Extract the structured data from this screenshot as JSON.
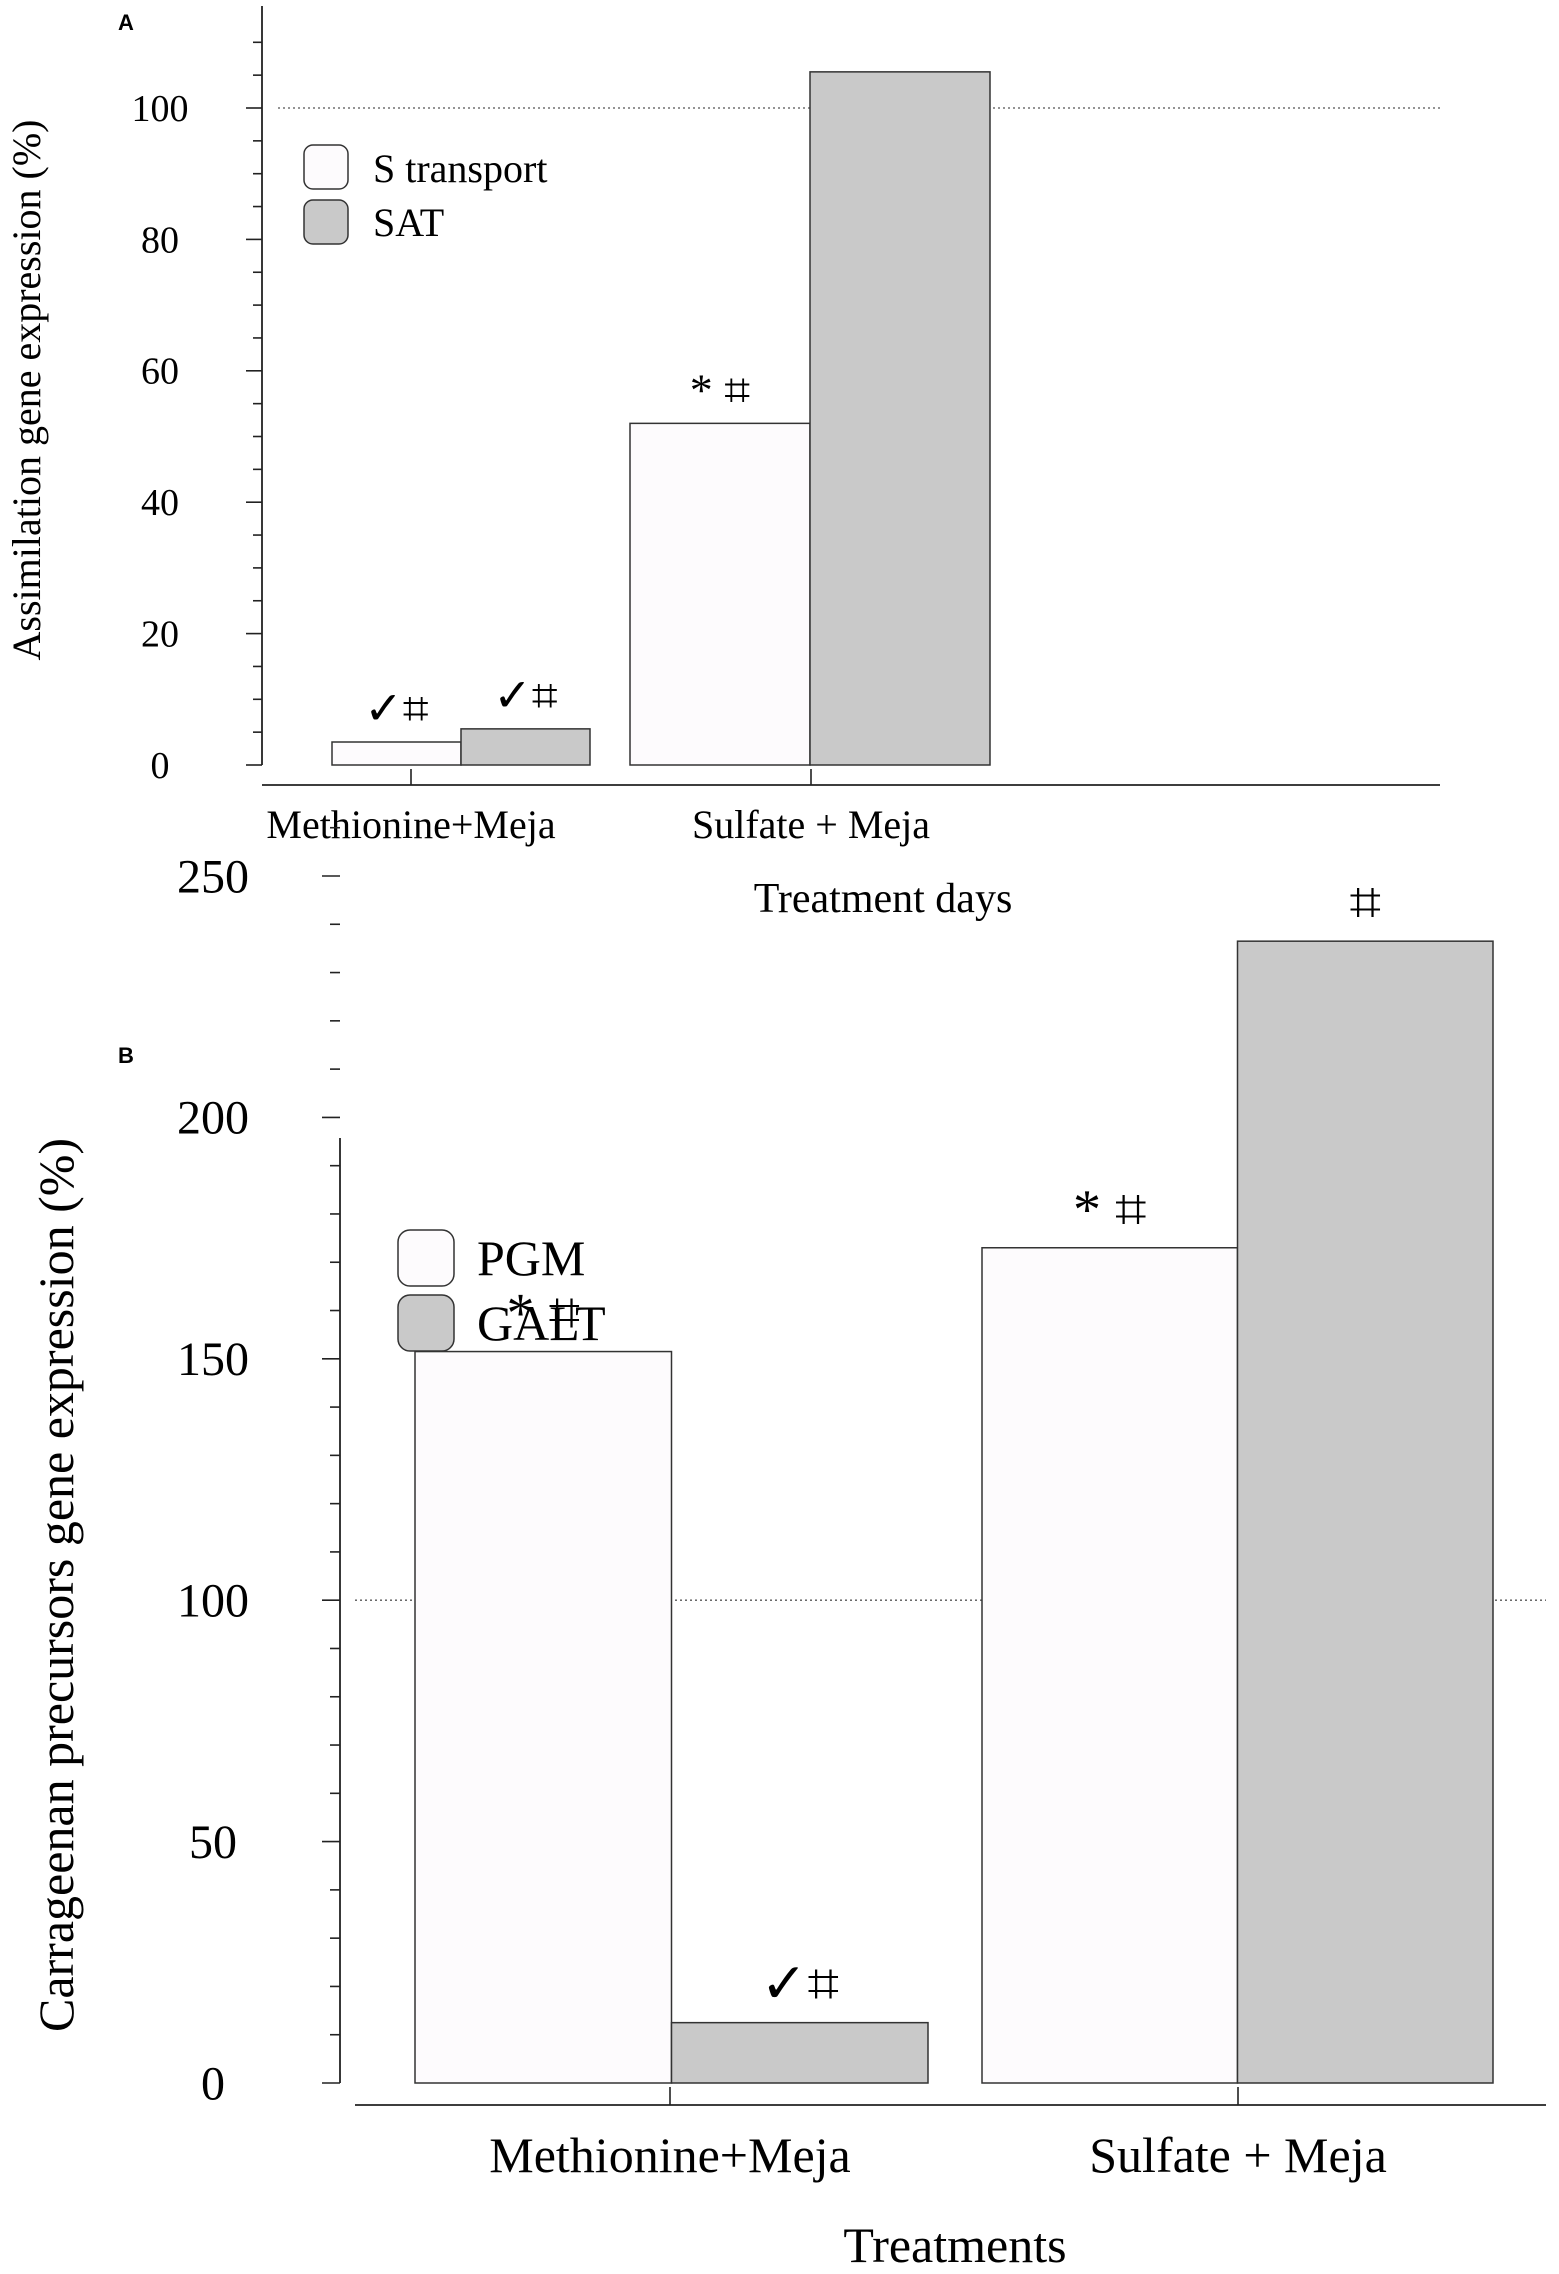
{
  "colors": {
    "series_light": "#fdfbfd",
    "series_gray": "#c9c9c9",
    "axis": "#222222",
    "reference_line": "#555555"
  },
  "chart_data": [
    {
      "panel_label": "A",
      "type": "bar",
      "title": "",
      "xlabel": "Treatment days",
      "ylabel": "Assimilation  gene expression (%)",
      "categories": [
        "Methionine+Meja",
        "Sulfate + Meja"
      ],
      "series": [
        {
          "name": "S transport",
          "values": [
            3.5,
            52
          ],
          "annotations": [
            "✓⌗",
            "* ⌗"
          ]
        },
        {
          "name": "SAT",
          "values": [
            5.5,
            105.5
          ],
          "annotations": [
            "✓⌗",
            ""
          ]
        }
      ],
      "ylim": [
        0,
        112
      ],
      "yticks": [
        0,
        20,
        40,
        60,
        80,
        100
      ],
      "reference_line": 100,
      "legend": "top-left"
    },
    {
      "panel_label": "B",
      "type": "bar",
      "title": "",
      "xlabel": "Treatments",
      "ylabel": "Carrageenan precursors  gene expression (%)",
      "categories": [
        "Methionine+Meja",
        "Sulfate + Meja"
      ],
      "series": [
        {
          "name": "PGM",
          "values": [
            151.5,
            173
          ],
          "annotations": [
            "* ⌗",
            "* ⌗"
          ]
        },
        {
          "name": "GALT",
          "values": [
            12.5,
            236.5
          ],
          "annotations": [
            "✓⌗",
            "⌗"
          ]
        }
      ],
      "ylim": [
        0,
        265
      ],
      "yticks": [
        0,
        50,
        100,
        150,
        200,
        250
      ],
      "reference_line": 100,
      "legend": "top-left"
    }
  ]
}
